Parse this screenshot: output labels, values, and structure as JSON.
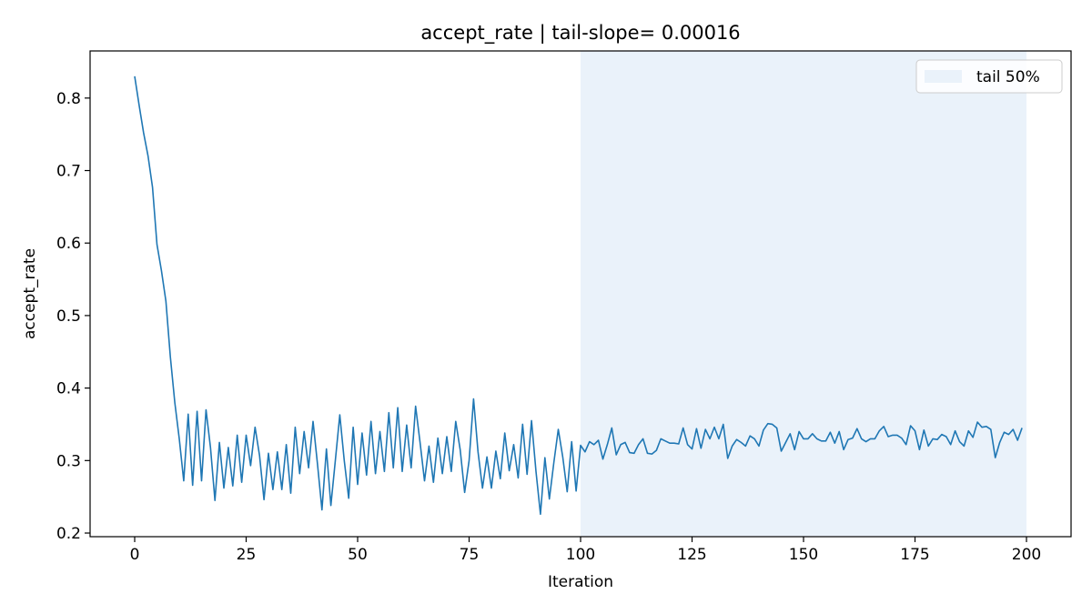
{
  "chart_data": {
    "type": "line",
    "title": "accept_rate | tail-slope= 0.00016",
    "xlabel": "Iteration",
    "ylabel": "accept_rate",
    "xlim": [
      -10,
      210
    ],
    "ylim": [
      0.195,
      0.865
    ],
    "xticks": [
      0,
      25,
      50,
      75,
      100,
      125,
      150,
      175,
      200
    ],
    "yticks": [
      0.2,
      0.3,
      0.4,
      0.5,
      0.6,
      0.7,
      0.8
    ],
    "grid": false,
    "legend_position": "top-right",
    "span": {
      "label": "tail 50%",
      "x_start": 100,
      "x_end": 200,
      "color": "#eaf2fa"
    },
    "series": [
      {
        "color": "#1f77b4",
        "x_start": 0,
        "x_step": 1,
        "values": [
          0.83,
          0.79,
          0.752,
          0.72,
          0.677,
          0.598,
          0.562,
          0.52,
          0.443,
          0.38,
          0.33,
          0.272,
          0.364,
          0.266,
          0.368,
          0.272,
          0.37,
          0.318,
          0.245,
          0.325,
          0.262,
          0.318,
          0.265,
          0.335,
          0.27,
          0.335,
          0.293,
          0.346,
          0.307,
          0.246,
          0.31,
          0.26,
          0.312,
          0.26,
          0.322,
          0.255,
          0.346,
          0.282,
          0.34,
          0.29,
          0.354,
          0.295,
          0.232,
          0.316,
          0.238,
          0.3,
          0.363,
          0.3,
          0.248,
          0.346,
          0.267,
          0.338,
          0.28,
          0.354,
          0.282,
          0.34,
          0.285,
          0.366,
          0.29,
          0.373,
          0.285,
          0.349,
          0.29,
          0.375,
          0.325,
          0.272,
          0.32,
          0.27,
          0.331,
          0.282,
          0.333,
          0.285,
          0.354,
          0.315,
          0.256,
          0.3,
          0.385,
          0.312,
          0.262,
          0.305,
          0.262,
          0.313,
          0.275,
          0.338,
          0.286,
          0.322,
          0.276,
          0.35,
          0.281,
          0.355,
          0.285,
          0.226,
          0.304,
          0.247,
          0.297,
          0.343,
          0.305,
          0.257,
          0.326,
          0.258,
          0.321,
          0.312,
          0.326,
          0.322,
          0.328,
          0.302,
          0.322,
          0.345,
          0.308,
          0.322,
          0.325,
          0.311,
          0.31,
          0.322,
          0.33,
          0.31,
          0.309,
          0.314,
          0.33,
          0.327,
          0.324,
          0.324,
          0.323,
          0.345,
          0.322,
          0.316,
          0.344,
          0.317,
          0.343,
          0.33,
          0.346,
          0.33,
          0.35,
          0.303,
          0.32,
          0.329,
          0.325,
          0.32,
          0.334,
          0.33,
          0.32,
          0.342,
          0.351,
          0.35,
          0.345,
          0.313,
          0.325,
          0.337,
          0.315,
          0.34,
          0.33,
          0.33,
          0.337,
          0.33,
          0.327,
          0.327,
          0.339,
          0.324,
          0.34,
          0.315,
          0.329,
          0.331,
          0.344,
          0.33,
          0.326,
          0.33,
          0.33,
          0.341,
          0.347,
          0.333,
          0.335,
          0.335,
          0.331,
          0.322,
          0.348,
          0.341,
          0.315,
          0.342,
          0.32,
          0.33,
          0.329,
          0.336,
          0.333,
          0.322,
          0.341,
          0.326,
          0.32,
          0.341,
          0.332,
          0.353,
          0.346,
          0.347,
          0.343,
          0.304,
          0.325,
          0.339,
          0.336,
          0.343,
          0.328,
          0.345
        ]
      }
    ]
  }
}
